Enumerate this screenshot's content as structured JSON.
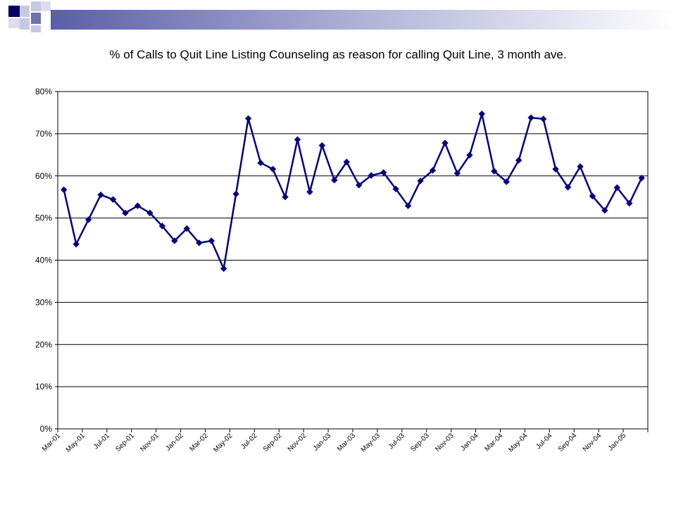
{
  "colors": {
    "header_dark": "#000066",
    "header_mid": "#6f73b3",
    "header_light": "#c6c8e4",
    "series": "#000080",
    "gridline": "#000000"
  },
  "chart_data": {
    "type": "line",
    "title": "% of Calls to Quit Line Listing Counseling as reason for calling Quit Line, 3 month ave.",
    "xlabel": "",
    "ylabel": "",
    "ylim": [
      0,
      80
    ],
    "y_ticks": [
      "0%",
      "10%",
      "20%",
      "30%",
      "40%",
      "50%",
      "60%",
      "70%",
      "80%"
    ],
    "grid": true,
    "legend": "none",
    "x_tick_labels": [
      "Mar-01",
      "May-01",
      "Jul-01",
      "Sep-01",
      "Nov-01",
      "Jan-02",
      "Mar-02",
      "May-02",
      "Jul-02",
      "Sep-02",
      "Nov-02",
      "Jan-03",
      "Mar-03",
      "May-03",
      "Jul-03",
      "Sep-03",
      "Nov-03",
      "Jan-04",
      "Mar-04",
      "May-04",
      "Jul-04",
      "Sep-04",
      "Nov-04",
      "Jan-05"
    ],
    "series": [
      {
        "values": [
          56.7,
          43.8,
          49.6,
          55.5,
          54.4,
          51.2,
          52.9,
          51.2,
          48.1,
          44.6,
          47.5,
          44.1,
          44.6,
          38.0,
          55.7,
          73.6,
          63.1,
          61.6,
          55.0,
          68.6,
          56.2,
          67.2,
          59.0,
          63.3,
          57.8,
          60.1,
          60.8,
          56.9,
          52.9,
          58.8,
          61.3,
          67.8,
          60.6,
          64.9,
          74.7,
          61.1,
          58.6,
          63.7,
          73.8,
          73.5,
          61.6,
          57.3,
          62.2,
          55.2,
          51.8,
          57.2,
          53.5,
          59.5
        ]
      }
    ]
  }
}
